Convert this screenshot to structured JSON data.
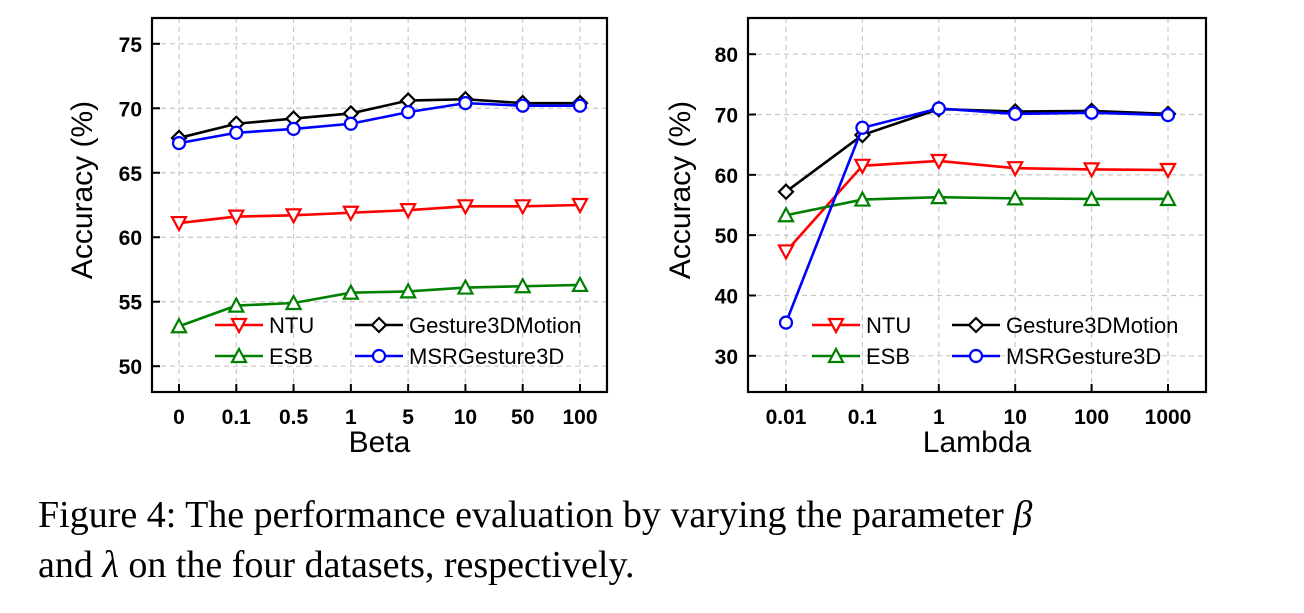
{
  "chart_data": [
    {
      "type": "line",
      "title": "",
      "xlabel": "Beta",
      "ylabel": "Accuracy (%)",
      "categories": [
        "0",
        "0.1",
        "0.5",
        "1",
        "5",
        "10",
        "50",
        "100"
      ],
      "ylim": [
        48,
        77
      ],
      "yticks": [
        "50",
        "55",
        "60",
        "65",
        "70",
        "75"
      ],
      "grid": true,
      "legend_position": "bottom",
      "series": [
        {
          "name": "NTU",
          "color": "#ff0000",
          "marker": "triangle-down",
          "values": [
            61.1,
            61.6,
            61.7,
            61.9,
            62.1,
            62.4,
            62.4,
            62.5
          ]
        },
        {
          "name": "Gesture3DMotion",
          "color": "#000000",
          "marker": "diamond",
          "values": [
            67.7,
            68.8,
            69.2,
            69.6,
            70.6,
            70.7,
            70.4,
            70.4
          ]
        },
        {
          "name": "ESB",
          "color": "#008000",
          "marker": "triangle-up",
          "values": [
            53.1,
            54.7,
            54.9,
            55.7,
            55.8,
            56.1,
            56.2,
            56.3
          ]
        },
        {
          "name": "MSRGesture3D",
          "color": "#0000ff",
          "marker": "circle",
          "values": [
            67.3,
            68.1,
            68.4,
            68.8,
            69.7,
            70.4,
            70.2,
            70.2
          ]
        }
      ]
    },
    {
      "type": "line",
      "title": "",
      "xlabel": "Lambda",
      "ylabel": "Accuracy (%)",
      "categories": [
        "0.01",
        "0.1",
        "1",
        "10",
        "100",
        "1000"
      ],
      "ylim": [
        24,
        86
      ],
      "yticks": [
        "30",
        "40",
        "50",
        "60",
        "70",
        "80"
      ],
      "grid": true,
      "legend_position": "bottom",
      "series": [
        {
          "name": "NTU",
          "color": "#ff0000",
          "marker": "triangle-down",
          "values": [
            47.3,
            61.5,
            62.3,
            61.1,
            60.9,
            60.8
          ]
        },
        {
          "name": "Gesture3DMotion",
          "color": "#000000",
          "marker": "diamond",
          "values": [
            57.2,
            66.6,
            70.9,
            70.5,
            70.6,
            70.1
          ]
        },
        {
          "name": "ESB",
          "color": "#008000",
          "marker": "triangle-up",
          "values": [
            53.3,
            55.9,
            56.3,
            56.1,
            56.0,
            56.0
          ]
        },
        {
          "name": "MSRGesture3D",
          "color": "#0000ff",
          "marker": "circle",
          "values": [
            35.5,
            67.8,
            71.0,
            70.1,
            70.3,
            69.9
          ]
        }
      ]
    }
  ],
  "caption": {
    "prefix": "Figure 4: The performance evaluation by varying the parameter ",
    "beta_symbol": "β",
    "middle": "and ",
    "lambda_symbol": "λ",
    "suffix": " on the four datasets, respectively."
  }
}
